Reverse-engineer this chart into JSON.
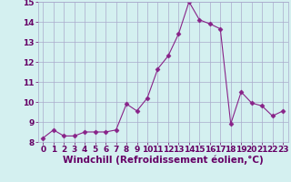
{
  "x": [
    0,
    1,
    2,
    3,
    4,
    5,
    6,
    7,
    8,
    9,
    10,
    11,
    12,
    13,
    14,
    15,
    16,
    17,
    18,
    19,
    20,
    21,
    22,
    23
  ],
  "y": [
    8.2,
    8.6,
    8.3,
    8.3,
    8.5,
    8.5,
    8.5,
    8.6,
    9.9,
    9.55,
    10.2,
    11.65,
    12.3,
    13.4,
    15.0,
    14.1,
    13.9,
    13.65,
    8.9,
    10.5,
    9.95,
    9.8,
    9.3,
    9.55
  ],
  "line_color": "#882288",
  "marker": "D",
  "marker_size": 2.5,
  "bg_color": "#d4f0f0",
  "grid_color": "#aaaacc",
  "xlabel": "Windchill (Refroidissement éolien,°C)",
  "xlabel_color": "#660066",
  "ylim": [
    8,
    15
  ],
  "xlim": [
    -0.5,
    23.5
  ],
  "yticks": [
    8,
    9,
    10,
    11,
    12,
    13,
    14,
    15
  ],
  "xticks": [
    0,
    1,
    2,
    3,
    4,
    5,
    6,
    7,
    8,
    9,
    10,
    11,
    12,
    13,
    14,
    15,
    16,
    17,
    18,
    19,
    20,
    21,
    22,
    23
  ],
  "tick_fontsize": 6.5,
  "xlabel_fontsize": 7.5
}
